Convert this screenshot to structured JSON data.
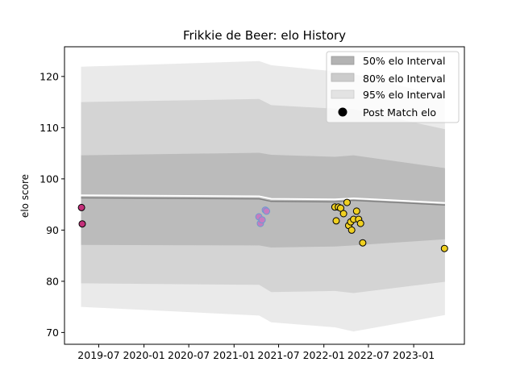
{
  "chart_data": {
    "type": "line",
    "title": "Frikkie de Beer: elo History",
    "xlabel": "",
    "ylabel": "elo score",
    "x_axis_type": "date",
    "xlim": [
      "2019-02-12",
      "2023-07-26"
    ],
    "ylim": [
      67.7,
      125.8
    ],
    "x_ticks": [
      "2019-07",
      "2020-01",
      "2020-07",
      "2021-01",
      "2021-07",
      "2022-01",
      "2022-07",
      "2023-01"
    ],
    "y_ticks": [
      70,
      80,
      90,
      100,
      110,
      120
    ],
    "grid": false,
    "legend_position": "top-right",
    "legend": [
      "50% elo Interval",
      "80% elo Interval",
      "95% elo Interval",
      "Post Match elo"
    ],
    "colors": {
      "band_50": "#b3b3b3",
      "band_80": "#cccccc",
      "band_95": "#e3e3e3",
      "mean_line": "#808080",
      "white_line": "#ffffff",
      "point_edge": "#000000",
      "point_edge_2021": "#6c9bd2",
      "point_fill_2019": "#c4307a",
      "point_fill_2021": "#c77cbf",
      "point_fill_2022": "#f0d020"
    },
    "x": [
      "2019-04-20",
      "2021-04-13",
      "2021-06-01",
      "2022-02-15",
      "2022-05-01",
      "2023-05-08"
    ],
    "series": [
      {
        "label": "mean",
        "values": [
          96.3,
          96.1,
          95.6,
          95.5,
          95.8,
          94.9
        ]
      },
      {
        "label": "upper_white",
        "values": [
          96.8,
          96.6,
          96.1,
          96.0,
          96.2,
          95.3
        ]
      },
      {
        "label": "50_upper",
        "values": [
          104.6,
          105.1,
          104.7,
          104.3,
          104.6,
          102.1
        ]
      },
      {
        "label": "50_lower",
        "values": [
          87.1,
          87.0,
          86.6,
          86.8,
          87.0,
          88.2
        ]
      },
      {
        "label": "80_upper",
        "values": [
          115.0,
          115.6,
          114.4,
          113.7,
          113.6,
          109.7
        ]
      },
      {
        "label": "80_lower",
        "values": [
          79.6,
          79.3,
          77.9,
          78.1,
          77.7,
          79.9
        ]
      },
      {
        "label": "95_upper",
        "values": [
          121.9,
          123.0,
          122.2,
          121.0,
          120.5,
          116.0
        ]
      },
      {
        "label": "95_lower",
        "values": [
          75.0,
          73.3,
          72.0,
          71.0,
          70.2,
          73.4
        ]
      }
    ],
    "points": [
      {
        "group": "2019",
        "x": "2019-04-22",
        "y": 94.4
      },
      {
        "group": "2019",
        "x": "2019-04-25",
        "y": 91.2
      },
      {
        "group": "2021",
        "x": "2021-04-12",
        "y": 92.6
      },
      {
        "group": "2021",
        "x": "2021-04-18",
        "y": 91.3
      },
      {
        "group": "2021",
        "x": "2021-04-25",
        "y": 92.0
      },
      {
        "group": "2021",
        "x": "2021-05-08",
        "y": 93.9
      },
      {
        "group": "2021",
        "x": "2021-05-13",
        "y": 93.7
      },
      {
        "group": "2022",
        "x": "2022-02-15",
        "y": 94.5
      },
      {
        "group": "2022",
        "x": "2022-02-20",
        "y": 91.8
      },
      {
        "group": "2022",
        "x": "2022-03-01",
        "y": 94.5
      },
      {
        "group": "2022",
        "x": "2022-03-10",
        "y": 94.3
      },
      {
        "group": "2022",
        "x": "2022-03-22",
        "y": 93.2
      },
      {
        "group": "2022",
        "x": "2022-04-05",
        "y": 95.4
      },
      {
        "group": "2022",
        "x": "2022-04-12",
        "y": 90.9
      },
      {
        "group": "2022",
        "x": "2022-04-20",
        "y": 91.6
      },
      {
        "group": "2022",
        "x": "2022-04-24",
        "y": 90.0
      },
      {
        "group": "2022",
        "x": "2022-05-02",
        "y": 92.1
      },
      {
        "group": "2022",
        "x": "2022-05-14",
        "y": 93.7
      },
      {
        "group": "2022",
        "x": "2022-05-22",
        "y": 92.1
      },
      {
        "group": "2022",
        "x": "2022-05-30",
        "y": 91.3
      },
      {
        "group": "2022",
        "x": "2022-06-08",
        "y": 87.5
      },
      {
        "group": "2023",
        "x": "2023-05-06",
        "y": 86.4
      }
    ]
  }
}
